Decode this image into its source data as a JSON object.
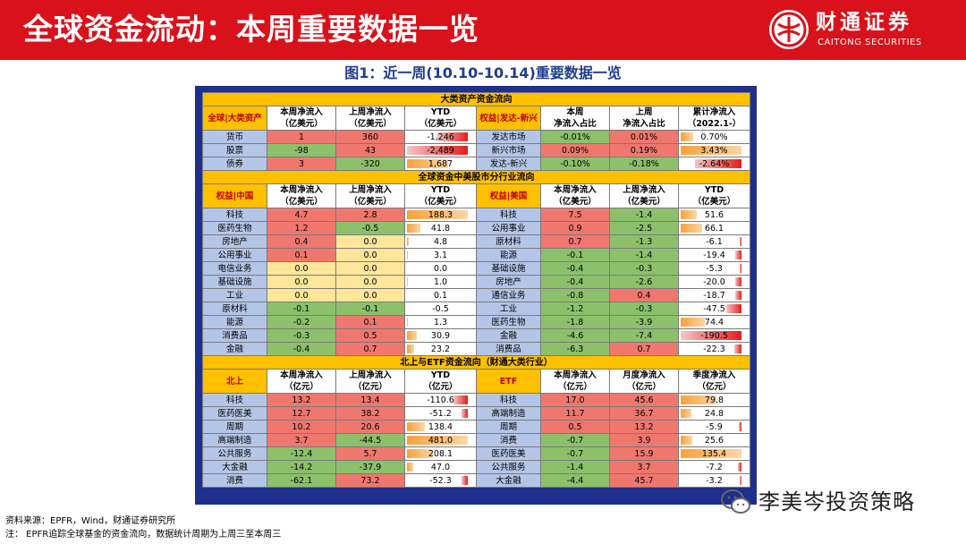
{
  "header": {
    "title": "全球资金流动：本周重要数据一览",
    "logo_cn": "财通证券",
    "logo_en": "CAITONG SECURITIES",
    "color": "#d9111b"
  },
  "figure_title": "图1：近一周(10.10-10.14)重要数据一览",
  "sections": {
    "s1": "大类资产资金流向",
    "s2": "全球资金中美股市分行业流向",
    "s3": "北上与ETF资金流向（财通大类行业）"
  },
  "s1_head": {
    "left": [
      "全球|大类资产",
      "本周净流入\n（亿美元）",
      "上周净流入\n（亿美元）",
      "YTD\n（亿美元）"
    ],
    "right": [
      "权益|发达-新兴",
      "本周\n净流入占比",
      "上周\n净流入占比",
      "累计净流入\n（2022.1-）"
    ]
  },
  "s1_rows": [
    {
      "name": "货币",
      "cur": "1",
      "prev": "360",
      "ytd": "-1,246",
      "rname": "发达市场",
      "rcur": "-0.01%",
      "rprev": "0.01%",
      "rytd": "0.70%"
    },
    {
      "name": "股票",
      "cur": "-98",
      "prev": "43",
      "ytd": "-2,489",
      "rname": "新兴市场",
      "rcur": "0.09%",
      "rprev": "0.19%",
      "rytd": "3.43%"
    },
    {
      "name": "债券",
      "cur": "3",
      "prev": "-320",
      "ytd": "1,687",
      "rname": "发达-新兴",
      "rcur": "-0.10%",
      "rprev": "-0.18%",
      "rytd": "-2.64%"
    }
  ],
  "s2_head": {
    "left": [
      "权益|中国",
      "本周净流入\n（亿美元）",
      "上周净流入\n（亿美元）",
      "YTD\n（亿美元）"
    ],
    "right": [
      "权益|美国",
      "本周净流入\n（亿美元）",
      "上周净流入\n（亿美元）",
      "YTD\n（亿美元）"
    ]
  },
  "s2_rows": [
    {
      "name": "科技",
      "cur": "4.7",
      "prev": "2.8",
      "ytd": "188.3",
      "rname": "科技",
      "rcur": "7.5",
      "rprev": "-1.4",
      "rytd": "51.6"
    },
    {
      "name": "医药生物",
      "cur": "1.2",
      "prev": "-0.5",
      "ytd": "41.8",
      "rname": "公用事业",
      "rcur": "0.9",
      "rprev": "-2.5",
      "rytd": "66.1"
    },
    {
      "name": "房地产",
      "cur": "0.4",
      "prev": "0.0",
      "ytd": "4.8",
      "rname": "原材料",
      "rcur": "0.7",
      "rprev": "-1.3",
      "rytd": "-6.1"
    },
    {
      "name": "公用事业",
      "cur": "0.1",
      "prev": "0.0",
      "ytd": "3.1",
      "rname": "能源",
      "rcur": "-0.1",
      "rprev": "-1.4",
      "rytd": "-19.4"
    },
    {
      "name": "电信业务",
      "cur": "0.0",
      "prev": "0.0",
      "ytd": "0.0",
      "rname": "基础设施",
      "rcur": "-0.4",
      "rprev": "-0.3",
      "rytd": "-5.3"
    },
    {
      "name": "基础设施",
      "cur": "0.0",
      "prev": "0.0",
      "ytd": "1.0",
      "rname": "房地产",
      "rcur": "-0.4",
      "rprev": "-2.6",
      "rytd": "-20.0"
    },
    {
      "name": "工业",
      "cur": "0.0",
      "prev": "0.0",
      "ytd": "0.1",
      "rname": "通信业务",
      "rcur": "-0.8",
      "rprev": "0.4",
      "rytd": "-18.7"
    },
    {
      "name": "原材料",
      "cur": "-0.1",
      "prev": "-0.1",
      "ytd": "-0.5",
      "rname": "工业",
      "rcur": "-1.2",
      "rprev": "-0.3",
      "rytd": "-47.5"
    },
    {
      "name": "能源",
      "cur": "-0.2",
      "prev": "0.1",
      "ytd": "1.3",
      "rname": "医药生物",
      "rcur": "-1.8",
      "rprev": "-3.9",
      "rytd": "74.4"
    },
    {
      "name": "消费品",
      "cur": "-0.3",
      "prev": "0.5",
      "ytd": "30.9",
      "rname": "金融",
      "rcur": "-4.6",
      "rprev": "-7.4",
      "rytd": "-190.5"
    },
    {
      "name": "金融",
      "cur": "-0.4",
      "prev": "0.7",
      "ytd": "23.2",
      "rname": "消费品",
      "rcur": "-6.3",
      "rprev": "0.7",
      "rytd": "-22.3"
    }
  ],
  "s3_head": {
    "left": [
      "北上",
      "本周净流入\n（亿元）",
      "上周净流入\n（亿元）",
      "YTD\n（亿元）"
    ],
    "right": [
      "ETF",
      "本周净流入\n（亿元）",
      "月度净流入\n（亿元）",
      "季度净流入\n（亿元）"
    ]
  },
  "s3_rows": [
    {
      "name": "科技",
      "cur": "13.2",
      "prev": "13.4",
      "ytd": "-110.6",
      "rname": "科技",
      "rcur": "17.0",
      "rprev": "45.6",
      "rytd": "79.8"
    },
    {
      "name": "医药医美",
      "cur": "12.7",
      "prev": "38.2",
      "ytd": "-51.2",
      "rname": "高端制造",
      "rcur": "11.7",
      "rprev": "36.7",
      "rytd": "24.8"
    },
    {
      "name": "周期",
      "cur": "10.2",
      "prev": "20.6",
      "ytd": "138.4",
      "rname": "周期",
      "rcur": "0.5",
      "rprev": "13.2",
      "rytd": "-5.9"
    },
    {
      "name": "高端制造",
      "cur": "3.7",
      "prev": "-44.5",
      "ytd": "481.0",
      "rname": "消费",
      "rcur": "-0.7",
      "rprev": "3.9",
      "rytd": "25.6"
    },
    {
      "name": "公共服务",
      "cur": "-12.4",
      "prev": "5.7",
      "ytd": "208.1",
      "rname": "医药医美",
      "rcur": "-0.7",
      "rprev": "15.9",
      "rytd": "135.4"
    },
    {
      "name": "大金融",
      "cur": "-14.2",
      "prev": "-37.9",
      "ytd": "47.0",
      "rname": "公共服务",
      "rcur": "-1.4",
      "rprev": "3.7",
      "rytd": "-7.2"
    },
    {
      "name": "消费",
      "cur": "-62.1",
      "prev": "73.2",
      "ytd": "-52.3",
      "rname": "大金融",
      "rcur": "-4.4",
      "rprev": "45.7",
      "rytd": "-3.2"
    }
  ],
  "footer": {
    "source": "资料来源：EPFR，Wind，财通证券研究所",
    "note": "注：  EPFR追踪全球基金的资金流向，数据统计周期为上周三至本周三"
  },
  "watermark": "李美岑投资策略"
}
